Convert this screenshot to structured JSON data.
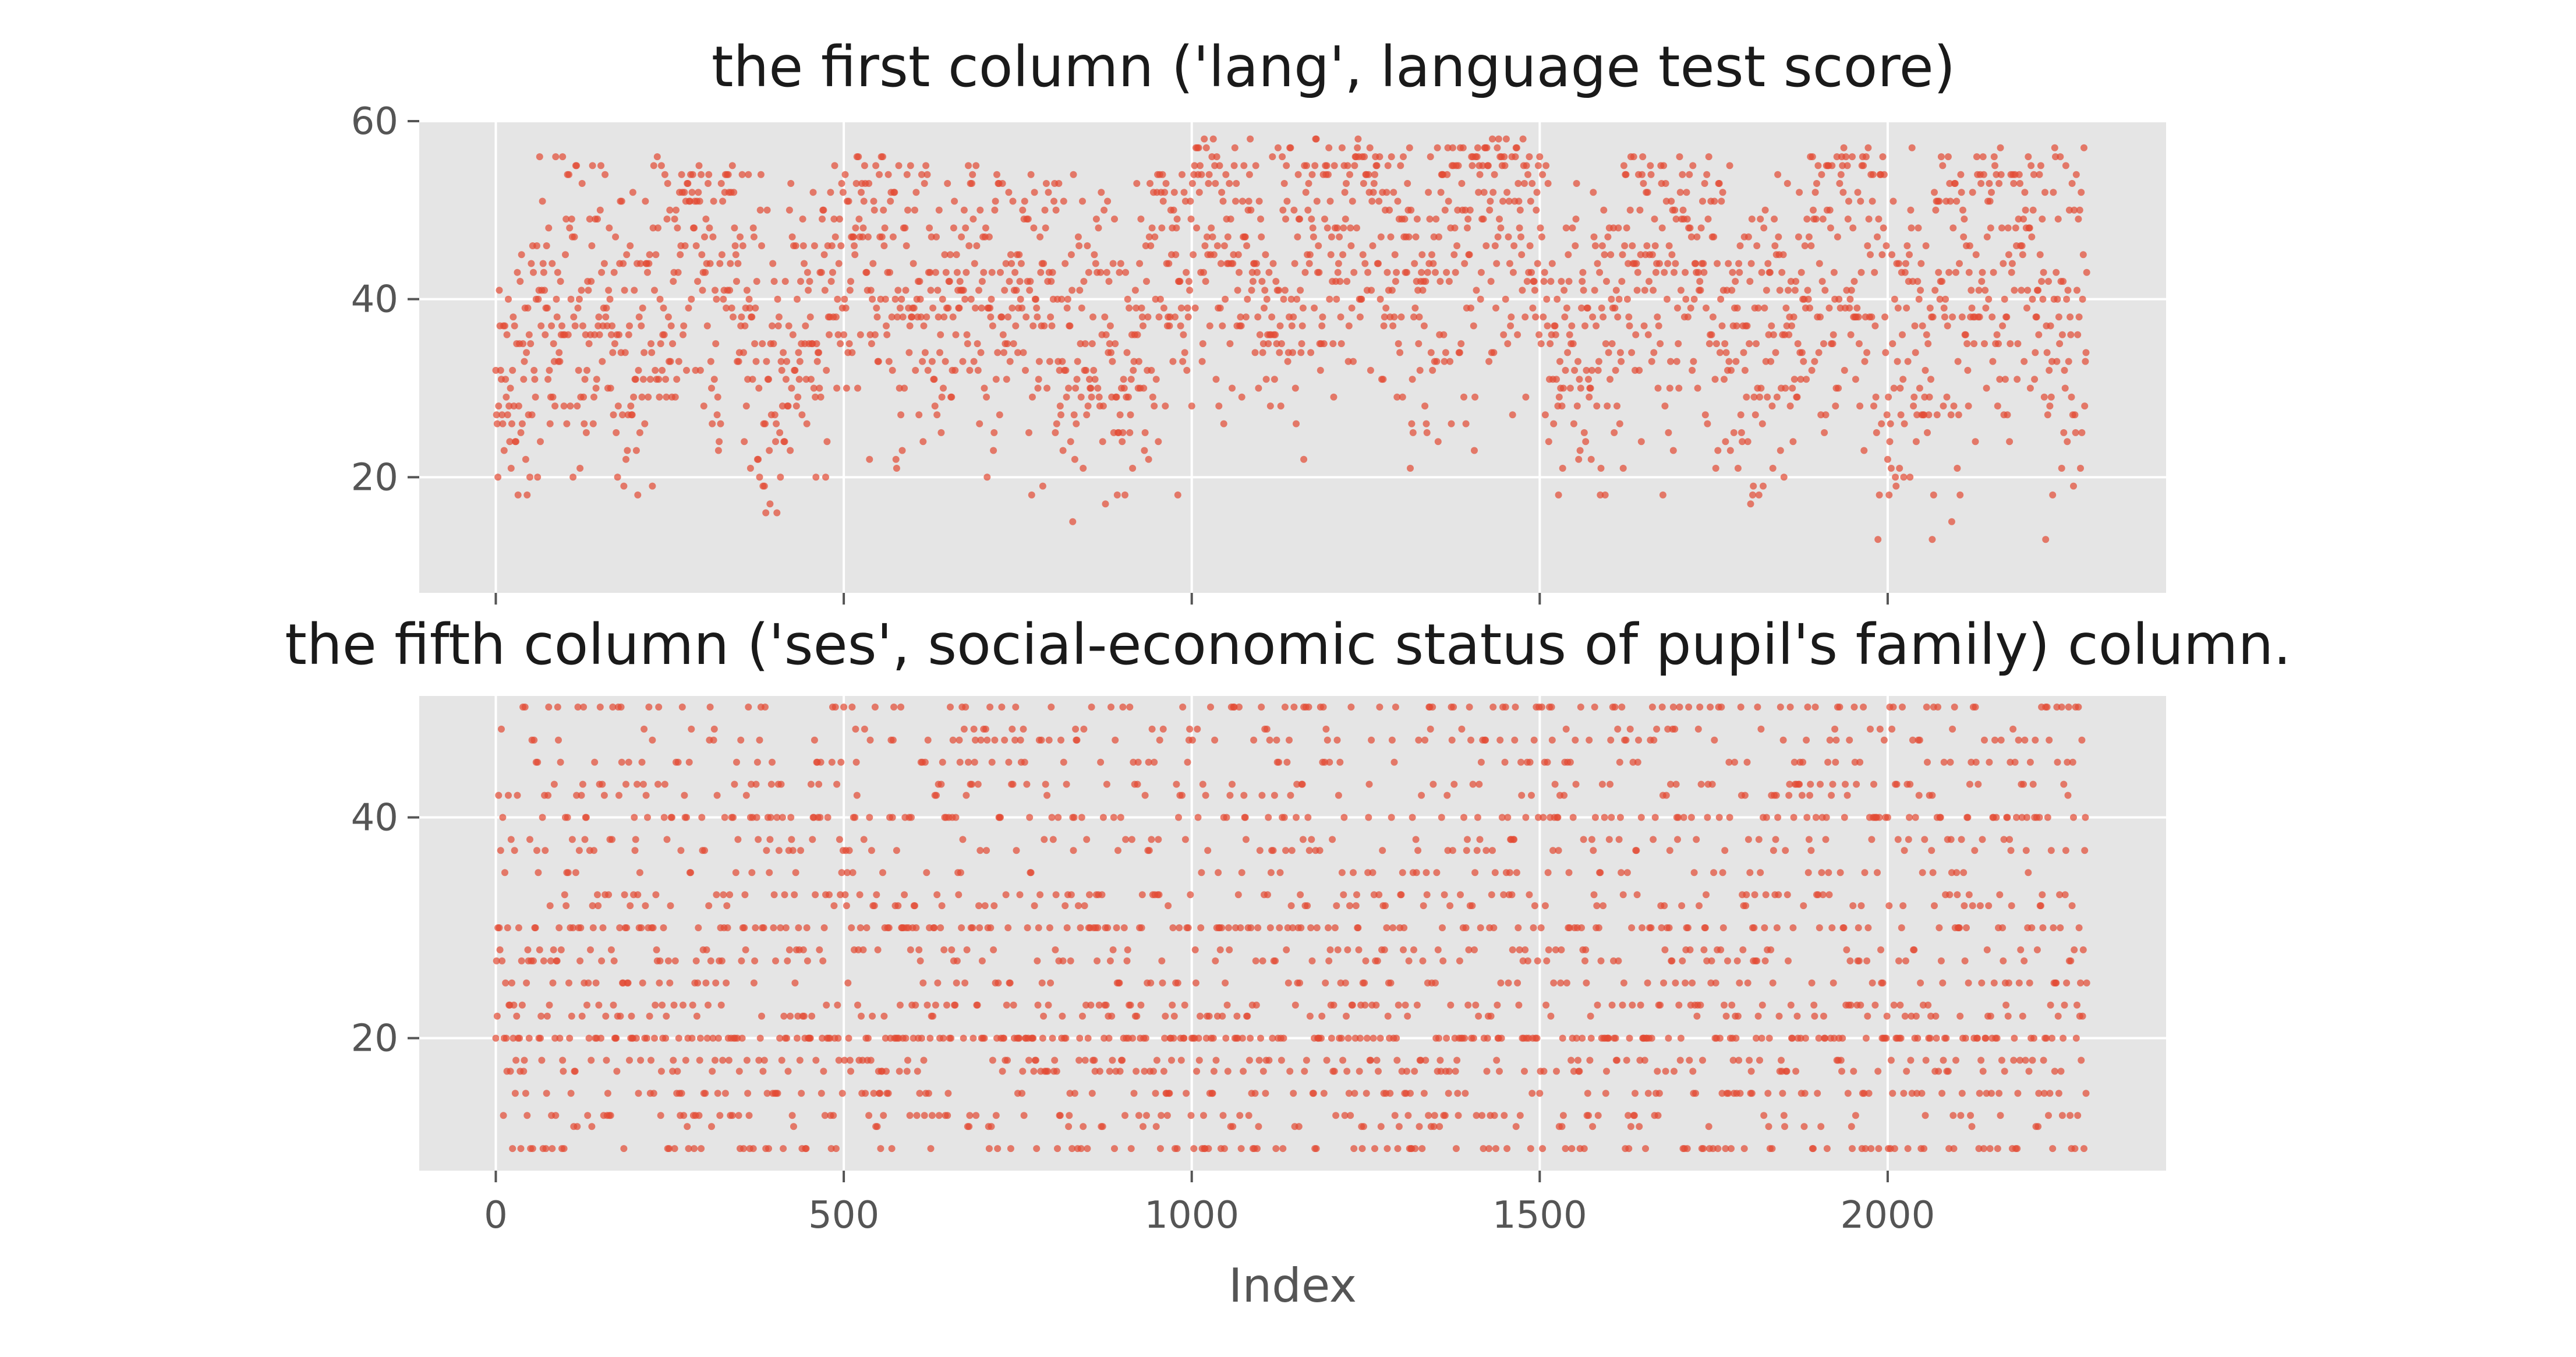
{
  "chart_data": [
    {
      "type": "scatter",
      "title": "the first column ('lang', language test score)",
      "xlabel": "",
      "ylabel": "",
      "xlim": [
        -110,
        2400
      ],
      "ylim": [
        7,
        60
      ],
      "x_ticks": [
        0,
        500,
        1000,
        1500,
        2000
      ],
      "y_ticks": [
        20,
        40,
        60
      ],
      "grid": true,
      "marker_color": "#E24A33",
      "x_range": [
        0,
        2286
      ],
      "n_points": 2287,
      "y_value_range": [
        9,
        58
      ],
      "segments": [
        {
          "x": [
            0,
            60
          ],
          "y_range": [
            14,
            46
          ],
          "center": 30
        },
        {
          "x": [
            60,
            300
          ],
          "y_range": [
            17,
            56
          ],
          "center": 40
        },
        {
          "x": [
            300,
            480
          ],
          "y_range": [
            15,
            55
          ],
          "center": 37
        },
        {
          "x": [
            480,
            700
          ],
          "y_range": [
            16,
            56
          ],
          "center": 43
        },
        {
          "x": [
            700,
            1000
          ],
          "y_range": [
            14,
            54
          ],
          "center": 38
        },
        {
          "x": [
            1000,
            1500
          ],
          "y_range": [
            20,
            58
          ],
          "center": 46
        },
        {
          "x": [
            1500,
            1900
          ],
          "y_range": [
            17,
            56
          ],
          "center": 40
        },
        {
          "x": [
            1900,
            2286
          ],
          "y_range": [
            11,
            57
          ],
          "center": 42
        }
      ]
    },
    {
      "type": "scatter",
      "title": "the fifth column ('ses', social-economic status of pupil's family) column.",
      "xlabel": "Index",
      "ylabel": "",
      "xlim": [
        -110,
        2400
      ],
      "ylim": [
        8,
        51
      ],
      "x_ticks": [
        0,
        500,
        1000,
        1500,
        2000
      ],
      "y_ticks": [
        20,
        40
      ],
      "grid": true,
      "marker_color": "#E24A33",
      "x_range": [
        0,
        2286
      ],
      "n_points": 2287,
      "y_levels": [
        10,
        12,
        13,
        15,
        17,
        18,
        20,
        22,
        23,
        25,
        27,
        28,
        30,
        32,
        33,
        35,
        37,
        38,
        40,
        42,
        43,
        45,
        47,
        48,
        50
      ],
      "level_weights": [
        5,
        2,
        3,
        4,
        4,
        4,
        9,
        3,
        4,
        4,
        4,
        3,
        7,
        3,
        3,
        3,
        3,
        3,
        5,
        2,
        3,
        3,
        3,
        2,
        4
      ]
    }
  ]
}
